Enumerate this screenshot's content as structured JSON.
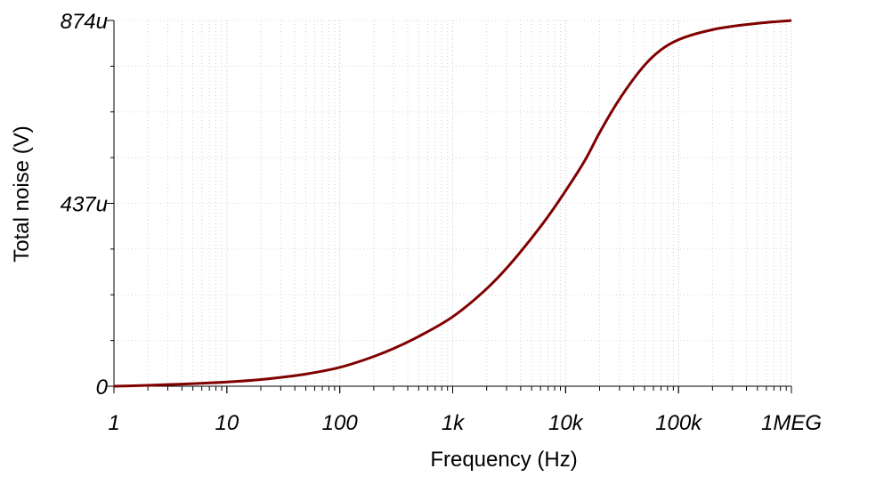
{
  "chart_data": {
    "type": "line",
    "xlabel": "Frequency (Hz)",
    "ylabel": "Total noise (V)",
    "xscale": "log",
    "xlim": [
      1,
      1000000
    ],
    "ylim": [
      0,
      0.000874
    ],
    "x_ticks": [
      {
        "value": 1,
        "label": "1"
      },
      {
        "value": 10,
        "label": "10"
      },
      {
        "value": 100,
        "label": "100"
      },
      {
        "value": 1000,
        "label": "1k"
      },
      {
        "value": 10000,
        "label": "10k"
      },
      {
        "value": 100000,
        "label": "100k"
      },
      {
        "value": 1000000,
        "label": "1MEG"
      }
    ],
    "y_ticks": [
      {
        "value": 0,
        "label": "0"
      },
      {
        "value": 0.000437,
        "label": "437u"
      },
      {
        "value": 0.000874,
        "label": "874u"
      }
    ],
    "grid": "dotted",
    "line_color": "#800000",
    "series": [
      {
        "x": [
          1,
          2,
          3,
          5,
          10,
          20,
          30,
          50,
          100,
          200,
          300,
          500,
          1000,
          2000,
          3000,
          5000,
          7000,
          10000,
          15000,
          20000,
          30000,
          50000,
          70000,
          100000,
          200000,
          500000,
          1000000
        ],
        "y": [
          0,
          2e-06,
          4e-06,
          6e-06,
          1e-05,
          1.6e-05,
          2.1e-05,
          2.9e-05,
          4.5e-05,
          7.1e-05,
          9e-05,
          0.000119,
          0.000166,
          0.000233,
          0.000282,
          0.000354,
          0.000406,
          0.000467,
          0.000542,
          0.000606,
          0.000686,
          0.000767,
          0.000804,
          0.000828,
          0.000852,
          0.000867,
          0.000874
        ]
      }
    ]
  }
}
